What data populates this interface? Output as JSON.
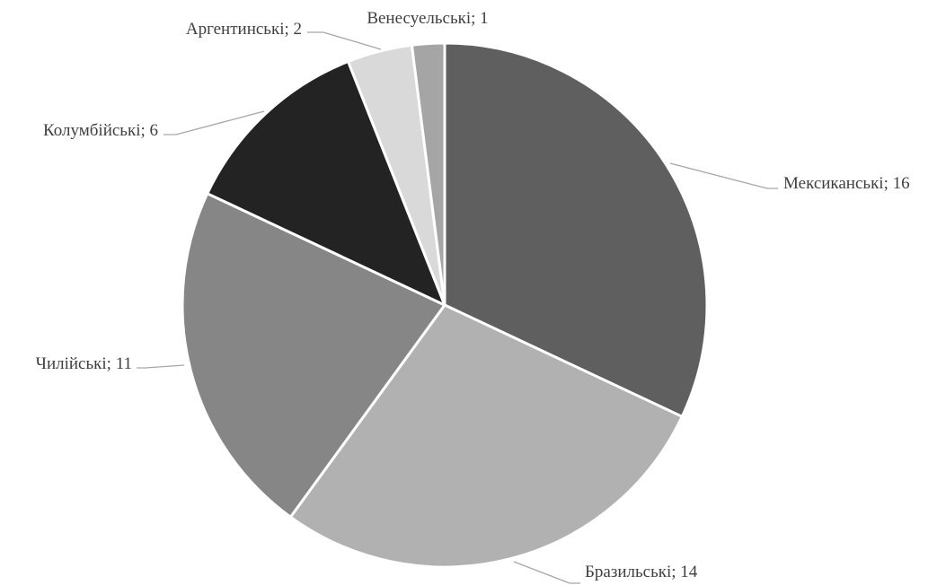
{
  "chart_data": {
    "type": "pie",
    "title": "",
    "label_separator": "; ",
    "slices": [
      {
        "label": "Мексиканські",
        "value": 16,
        "color": "#5f5f5f"
      },
      {
        "label": "Бразильські",
        "value": 14,
        "color": "#b1b1b1"
      },
      {
        "label": "Чилійські",
        "value": 11,
        "color": "#868686"
      },
      {
        "label": "Колумбійські",
        "value": 6,
        "color": "#232323"
      },
      {
        "label": "Аргентинські",
        "value": 2,
        "color": "#d9d9d9"
      },
      {
        "label": "Венесуельські",
        "value": 1,
        "color": "#a5a5a5"
      }
    ],
    "legend": "none"
  }
}
